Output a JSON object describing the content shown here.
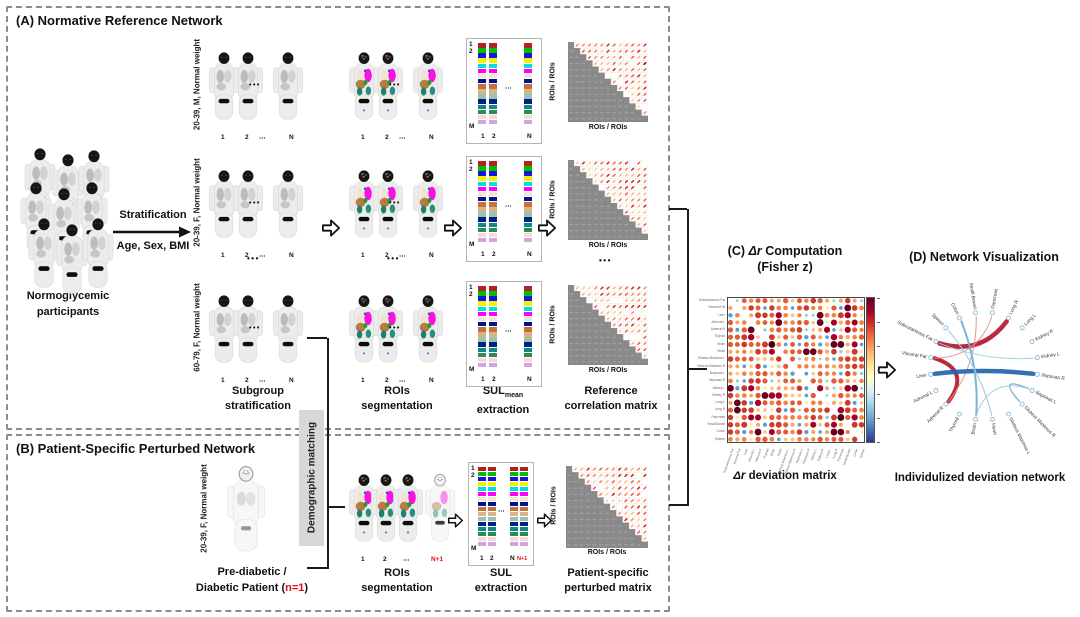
{
  "colors": {
    "panel_border": "#8c8c8c",
    "accent_red": "#e30613",
    "demographic_bg": "#d8d8d8",
    "bracket": "#1a1a1a",
    "matrix_lower_gray": "#8a8a8a"
  },
  "panelA": {
    "title": "(A) Normative Reference Network",
    "participants": {
      "line1": "Normoglycemic",
      "line2": "participants"
    },
    "stratification": {
      "label": "Stratification",
      "sublabel": "Age, Sex, BMI"
    },
    "groups": [
      "20-39, M, Normal weight",
      "20-39, F, Normal weight",
      "60-79, F, Normal weight"
    ],
    "index": {
      "first": "1",
      "second": "2",
      "dots": "⋯",
      "last": "N"
    },
    "sul_axis": {
      "top1": "1",
      "top2": "2",
      "bottom": "M"
    },
    "ellipsis": "•••",
    "captions": {
      "subgroup_1": "Subgroup",
      "subgroup_2": "stratification",
      "rois_1": "ROIs",
      "rois_2": "segmentation",
      "sul_main": "SUL",
      "sul_sub": "mean",
      "sul_2": "extraction",
      "matrix_1": "Reference",
      "matrix_2": "correlation matrix"
    },
    "matrix_axis": "ROIs / ROIs"
  },
  "panelB": {
    "title": "(B) Patient-Specific Perturbed Network",
    "group": "20-39, F, Normal weight",
    "patient_caption": {
      "line1": "Pre-diabetic /",
      "line2_pre": "Diabetic Patient (",
      "line2_red": "n=1",
      "line2_post": ")"
    },
    "demographic": "Demographic matching",
    "index_last": "N+1",
    "captions": {
      "rois_1": "ROIs",
      "rois_2": "segmentation",
      "sul_1": "SUL",
      "sul_2": "extraction",
      "matrix_1": "Patient-specific",
      "matrix_2": "perturbed matrix"
    },
    "matrix_axis": "ROIs / ROIs"
  },
  "panelC": {
    "title": {
      "pre": "(C) ",
      "italic": "Δr",
      "post": " Computation",
      "line2": "(Fisher z)"
    },
    "caption": {
      "italic": "Δr",
      "post": " deviation matrix"
    },
    "axis_labels": [
      "Subcutaneous Fat",
      "Visceral Fat",
      "Liver",
      "Adrenal L",
      "Adrenal R",
      "Thyroid",
      "Brain",
      "Heart",
      "Gluteus Maximus L",
      "Gluteus Maximus R",
      "Iliopsoas L",
      "Iliopsoas R",
      "Kidney L",
      "Kidney R",
      "Lung L",
      "Lung R",
      "Pancreas",
      "Small Bowel",
      "Colon",
      "Spleen"
    ],
    "dot_palette_pos": [
      [
        0.95,
        "#67001f"
      ],
      [
        0.82,
        "#a50026"
      ],
      [
        0.68,
        "#cb3a2a"
      ],
      [
        0.54,
        "#e25d35"
      ],
      [
        0.42,
        "#f2823f"
      ],
      [
        0.32,
        "#fba35b"
      ],
      [
        0.24,
        "#fdc480"
      ],
      [
        0.17,
        "#fee9a1"
      ],
      [
        0.1,
        "#e8f09e"
      ],
      [
        0.0,
        "#bfe5a0"
      ]
    ],
    "dot_palette_neg": [
      [
        -0.2,
        "#7fd4d0"
      ],
      [
        -1.0,
        "#4ba3d3"
      ]
    ],
    "colorbar": [
      "#67001f",
      "#a50026",
      "#d73027",
      "#f46d43",
      "#fdae61",
      "#fee090",
      "#ffffbf",
      "#e0f3f8",
      "#abd9e9",
      "#74add1",
      "#4575b4",
      "#313695"
    ]
  },
  "panelD": {
    "title": "(D) Network Visualization",
    "caption": "Individulized deviation network",
    "nodes": [
      {
        "label": "Small Bowel",
        "angle": 99
      },
      {
        "label": "Pancreas",
        "angle": 81
      },
      {
        "label": "Lung R",
        "angle": 63
      },
      {
        "label": "Lung L",
        "angle": 45
      },
      {
        "label": "Kidney R",
        "angle": 27
      },
      {
        "label": "Kidney L",
        "angle": 9
      },
      {
        "label": "Iliopsoas R",
        "angle": 351
      },
      {
        "label": "Iliopsoas L",
        "angle": 333
      },
      {
        "label": "Gluteus Maximus R",
        "angle": 315
      },
      {
        "label": "Gluteus Maximus L",
        "angle": 297
      },
      {
        "label": "Heart",
        "angle": 279
      },
      {
        "label": "Brain",
        "angle": 261
      },
      {
        "label": "Thyroid",
        "angle": 243
      },
      {
        "label": "Adrenal R",
        "angle": 225
      },
      {
        "label": "Adrenal L",
        "angle": 207
      },
      {
        "label": "Liver",
        "angle": 189
      },
      {
        "label": "Visceral Fat",
        "angle": 171
      },
      {
        "label": "Subcutaneous Fat",
        "angle": 153
      },
      {
        "label": "Spleen",
        "angle": 135
      },
      {
        "label": "Colon",
        "angle": 117
      }
    ],
    "edges": [
      {
        "from": "Subcutaneous Fat",
        "to": "Lung R",
        "color": "#b2182b",
        "width": 4.5
      },
      {
        "from": "Visceral Fat",
        "to": "Adrenal R",
        "color": "#b2182b",
        "width": 4
      },
      {
        "from": "Visceral Fat",
        "to": "Pancreas",
        "color": "#e38d8d",
        "width": 1
      },
      {
        "from": "Adrenal R",
        "to": "Small Bowel",
        "color": "#e38d8d",
        "width": 1
      },
      {
        "from": "Liver",
        "to": "Iliopsoas R",
        "color": "#2166ac",
        "width": 4.5
      },
      {
        "from": "Colon",
        "to": "Brain",
        "color": "#6baed6",
        "width": 2
      },
      {
        "from": "Spleen",
        "to": "Heart",
        "color": "#9ecae1",
        "width": 1.2
      },
      {
        "from": "Iliopsoas L",
        "to": "Gluteus Maximus R",
        "color": "#6baed6",
        "width": 1.4
      },
      {
        "from": "Subcutaneous Fat",
        "to": "Kidney L",
        "color": "#9ecae1",
        "width": 1
      },
      {
        "from": "Brain",
        "to": "Iliopsoas L",
        "color": "#9ecae1",
        "width": 1
      }
    ]
  },
  "sul_colors": [
    "#b22222",
    "#00c000",
    "#1515e0",
    "#f2f200",
    "#00e0e0",
    "#ff00ff",
    "#f3e3d3",
    "#00148c",
    "#c87137",
    "#d4b58e",
    "#9bc4a8",
    "#00208b",
    "#0c8a8a",
    "#2e8b57",
    "#f6d8dd",
    "#cfa6e0"
  ],
  "mini_matrix_palette": [
    "#fdf0d9",
    "#fee2ae",
    "#fdd49e",
    "#fdbb84",
    "#fc8d59",
    "#ef6548",
    "#d7301f",
    "#b30000"
  ]
}
